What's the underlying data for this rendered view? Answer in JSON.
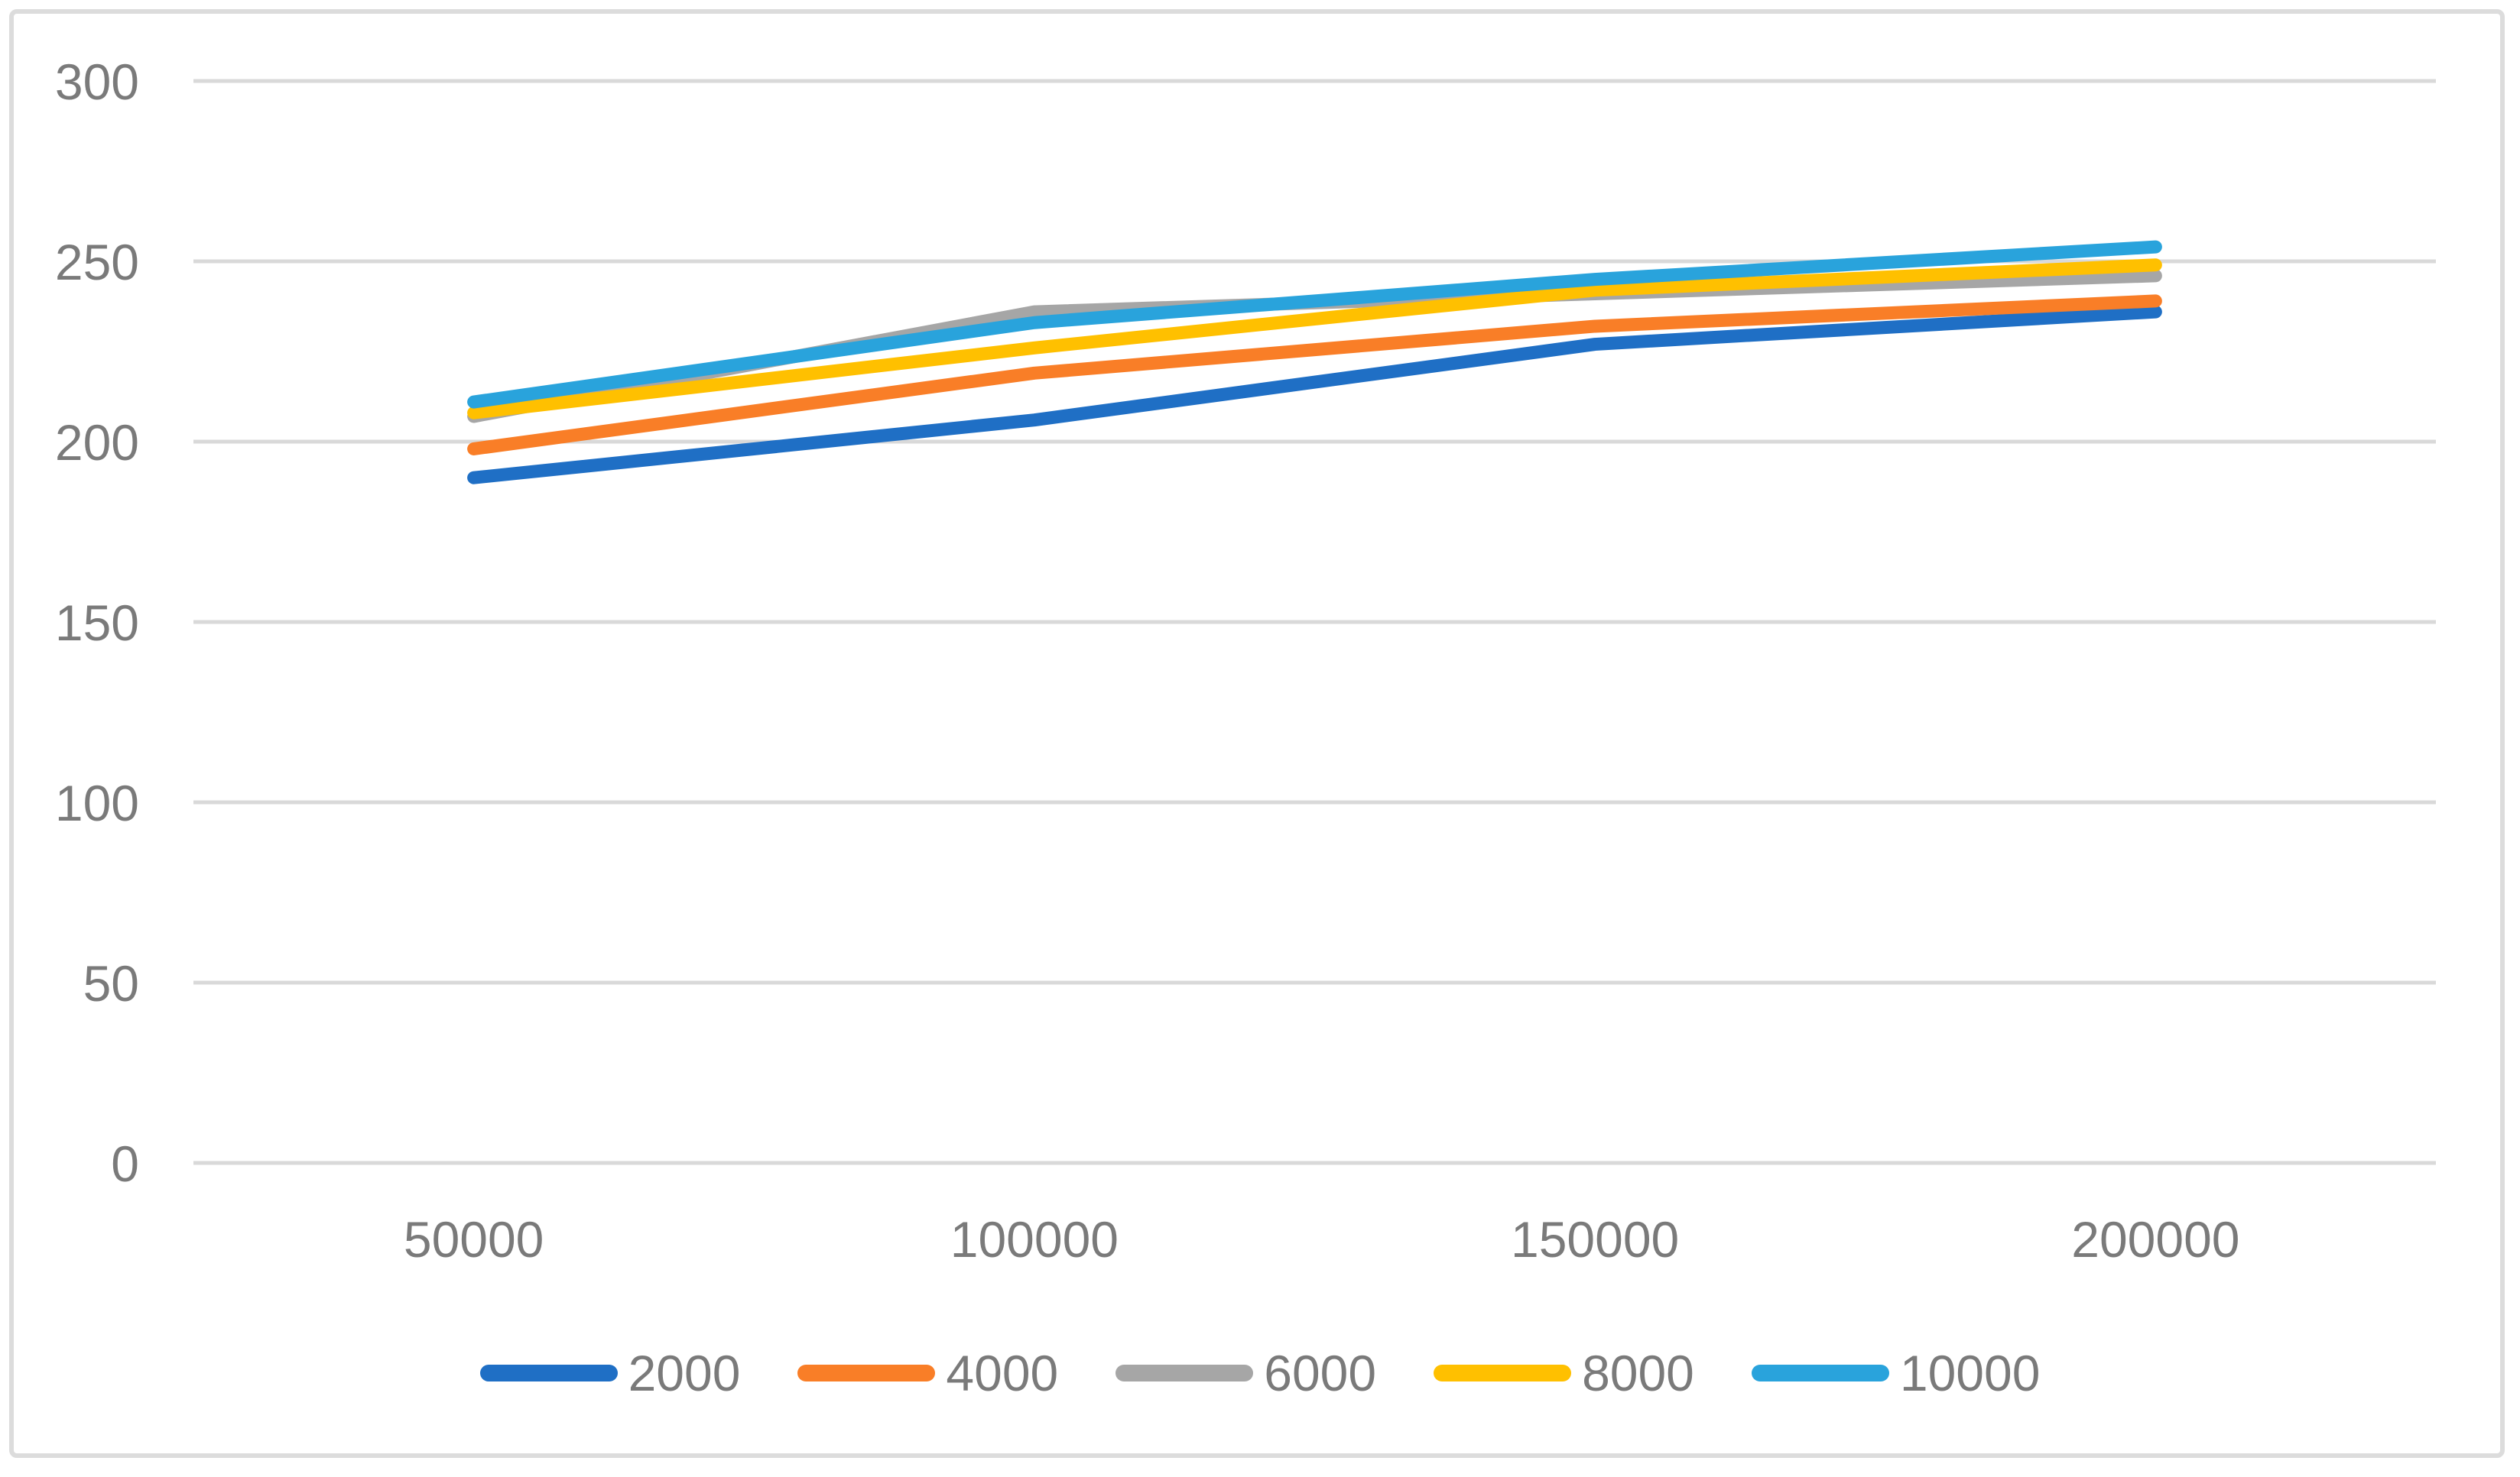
{
  "chart_data": {
    "type": "line",
    "categories": [
      "50000",
      "100000",
      "150000",
      "200000"
    ],
    "series": [
      {
        "name": "2000",
        "color": "#1F6FC5",
        "values": [
          190,
          206,
          227,
          236
        ]
      },
      {
        "name": "4000",
        "color": "#F97E27",
        "values": [
          198,
          219,
          232,
          239
        ]
      },
      {
        "name": "6000",
        "color": "#A6A6A6",
        "values": [
          207,
          236,
          241,
          246
        ]
      },
      {
        "name": "8000",
        "color": "#FFC000",
        "values": [
          208,
          226,
          242,
          249
        ]
      },
      {
        "name": "10000",
        "color": "#29A3DC",
        "values": [
          211,
          233,
          245,
          254
        ]
      }
    ],
    "ylim": [
      0,
      300
    ],
    "yticks": [
      0,
      50,
      100,
      150,
      200,
      250,
      300
    ],
    "grid": true,
    "legend_position": "bottom",
    "colors": {
      "gridline": "#D9D9D9",
      "tick_label": "#7A7A7A",
      "frame_border": "#DCDCDC",
      "background": "#FFFFFF"
    }
  }
}
